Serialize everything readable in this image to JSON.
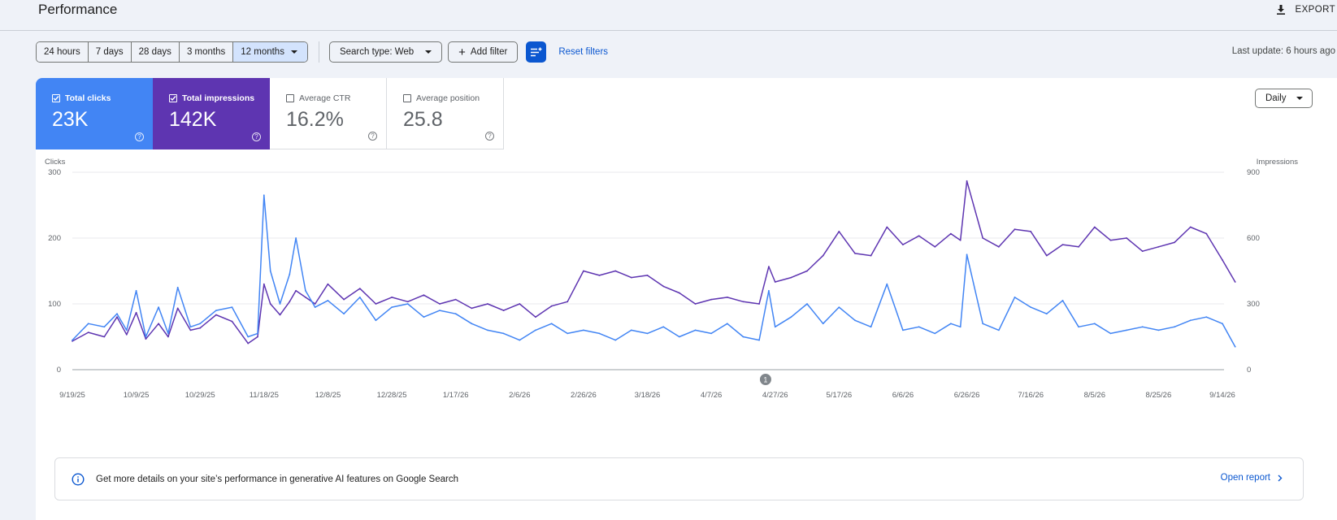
{
  "header": {
    "title": "Performance",
    "export_label": "EXPORT",
    "export_icon": "download-icon"
  },
  "filters": {
    "date_ranges": [
      "24 hours",
      "7 days",
      "28 days",
      "3 months",
      "12 months"
    ],
    "selected_range": "12 months",
    "search_type": "Search type: Web",
    "add_filter": "Add filter",
    "reset": "Reset filters",
    "last_update": "Last update: 6 hours ago"
  },
  "metrics": [
    {
      "label": "Total clicks",
      "value": "23K",
      "checked": true,
      "color": "#4285f4"
    },
    {
      "label": "Total impressions",
      "value": "142K",
      "checked": true,
      "color": "#5e35b1"
    },
    {
      "label": "Average CTR",
      "value": "16.2%",
      "checked": false
    },
    {
      "label": "Average position",
      "value": "25.8",
      "checked": false
    }
  ],
  "granularity": "Daily",
  "chart_data": {
    "type": "line",
    "xlabel": "",
    "y_left_label": "Clicks",
    "y_right_label": "Impressions",
    "y_left_ticks": [
      "300",
      "200",
      "100",
      "0"
    ],
    "y_right_ticks": [
      "900",
      "600",
      "300",
      "0"
    ],
    "ylim_left": [
      0,
      300
    ],
    "ylim_right": [
      0,
      900
    ],
    "x_tick_labels": [
      "9/19/25",
      "10/9/25",
      "10/29/25",
      "11/18/25",
      "12/8/25",
      "12/28/25",
      "1/17/26",
      "2/6/26",
      "2/26/26",
      "3/18/26",
      "4/7/26",
      "4/27/26",
      "5/17/26",
      "6/6/26",
      "6/26/26",
      "7/16/26",
      "8/5/26",
      "8/25/26",
      "9/14/26"
    ],
    "annotation_marker": "1",
    "annotation_date": "4/24/26",
    "series": [
      {
        "name": "Clicks",
        "axis": "left",
        "color": "#4285f4",
        "x": [
          "9/19/25",
          "9/24/25",
          "9/29/25",
          "10/3/25",
          "10/6/25",
          "10/9/25",
          "10/12/25",
          "10/16/25",
          "10/19/25",
          "10/22/25",
          "10/26/25",
          "10/29/25",
          "11/3/25",
          "11/8/25",
          "11/13/25",
          "11/16/25",
          "11/18/25",
          "11/20/25",
          "11/23/25",
          "11/26/25",
          "11/28/25",
          "12/1/25",
          "12/4/25",
          "12/8/25",
          "12/13/25",
          "12/18/25",
          "12/23/25",
          "12/28/25",
          "1/2/26",
          "1/7/26",
          "1/12/26",
          "1/17/26",
          "1/22/26",
          "1/27/26",
          "2/1/26",
          "2/6/26",
          "2/11/26",
          "2/16/26",
          "2/21/26",
          "2/26/26",
          "3/3/26",
          "3/8/26",
          "3/13/26",
          "3/18/26",
          "3/23/26",
          "3/28/26",
          "4/2/26",
          "4/7/26",
          "4/12/26",
          "4/17/26",
          "4/22/26",
          "4/25/26",
          "4/27/26",
          "5/2/26",
          "5/7/26",
          "5/12/26",
          "5/17/26",
          "5/22/26",
          "5/27/26",
          "6/1/26",
          "6/6/26",
          "6/11/26",
          "6/16/26",
          "6/21/26",
          "6/24/26",
          "6/26/26",
          "7/1/26",
          "7/6/26",
          "7/11/26",
          "7/16/26",
          "7/21/26",
          "7/26/26",
          "7/31/26",
          "8/5/26",
          "8/10/26",
          "8/15/26",
          "8/20/26",
          "8/25/26",
          "8/30/26",
          "9/4/26",
          "9/9/26",
          "9/14/26",
          "9/18/26"
        ],
        "values": [
          45,
          70,
          65,
          85,
          60,
          120,
          50,
          95,
          55,
          125,
          65,
          70,
          90,
          95,
          50,
          55,
          265,
          150,
          100,
          145,
          200,
          120,
          95,
          105,
          85,
          110,
          75,
          95,
          100,
          80,
          90,
          85,
          70,
          60,
          55,
          45,
          60,
          70,
          55,
          60,
          55,
          45,
          60,
          55,
          65,
          50,
          60,
          55,
          70,
          50,
          45,
          120,
          65,
          80,
          100,
          70,
          95,
          75,
          65,
          130,
          60,
          65,
          55,
          70,
          65,
          175,
          70,
          60,
          110,
          95,
          85,
          105,
          65,
          70,
          55,
          60,
          65,
          60,
          65,
          75,
          80,
          70,
          35
        ]
      },
      {
        "name": "Impressions",
        "axis": "right",
        "color": "#5e35b1",
        "x": [
          "9/19/25",
          "9/24/25",
          "9/29/25",
          "10/3/25",
          "10/6/25",
          "10/9/25",
          "10/12/25",
          "10/16/25",
          "10/19/25",
          "10/22/25",
          "10/26/25",
          "10/29/25",
          "11/3/25",
          "11/8/25",
          "11/13/25",
          "11/16/25",
          "11/18/25",
          "11/20/25",
          "11/23/25",
          "11/26/25",
          "11/28/25",
          "12/1/25",
          "12/4/25",
          "12/8/25",
          "12/13/25",
          "12/18/25",
          "12/23/25",
          "12/28/25",
          "1/2/26",
          "1/7/26",
          "1/12/26",
          "1/17/26",
          "1/22/26",
          "1/27/26",
          "2/1/26",
          "2/6/26",
          "2/11/26",
          "2/16/26",
          "2/21/26",
          "2/26/26",
          "3/3/26",
          "3/8/26",
          "3/13/26",
          "3/18/26",
          "3/23/26",
          "3/28/26",
          "4/2/26",
          "4/7/26",
          "4/12/26",
          "4/17/26",
          "4/22/26",
          "4/25/26",
          "4/27/26",
          "5/2/26",
          "5/7/26",
          "5/12/26",
          "5/17/26",
          "5/22/26",
          "5/27/26",
          "6/1/26",
          "6/6/26",
          "6/11/26",
          "6/16/26",
          "6/21/26",
          "6/24/26",
          "6/26/26",
          "7/1/26",
          "7/6/26",
          "7/11/26",
          "7/16/26",
          "7/21/26",
          "7/26/26",
          "7/31/26",
          "8/5/26",
          "8/10/26",
          "8/15/26",
          "8/20/26",
          "8/25/26",
          "8/30/26",
          "9/4/26",
          "9/9/26",
          "9/14/26",
          "9/18/26"
        ],
        "values": [
          130,
          170,
          150,
          240,
          160,
          260,
          140,
          210,
          150,
          280,
          180,
          190,
          250,
          220,
          120,
          150,
          390,
          300,
          250,
          310,
          360,
          330,
          300,
          390,
          320,
          370,
          300,
          330,
          310,
          340,
          300,
          320,
          280,
          300,
          270,
          300,
          240,
          290,
          310,
          450,
          430,
          450,
          420,
          430,
          380,
          350,
          300,
          320,
          330,
          310,
          300,
          470,
          400,
          420,
          450,
          520,
          630,
          530,
          520,
          650,
          570,
          610,
          560,
          620,
          590,
          860,
          600,
          560,
          640,
          630,
          520,
          570,
          560,
          650,
          590,
          600,
          540,
          560,
          580,
          650,
          620,
          500,
          400
        ]
      }
    ],
    "grid": true,
    "legend": "none"
  },
  "banner": {
    "icon": "info-icon",
    "text": "Get more details on your site’s performance in generative AI features on Google Search",
    "link": "Open report"
  }
}
